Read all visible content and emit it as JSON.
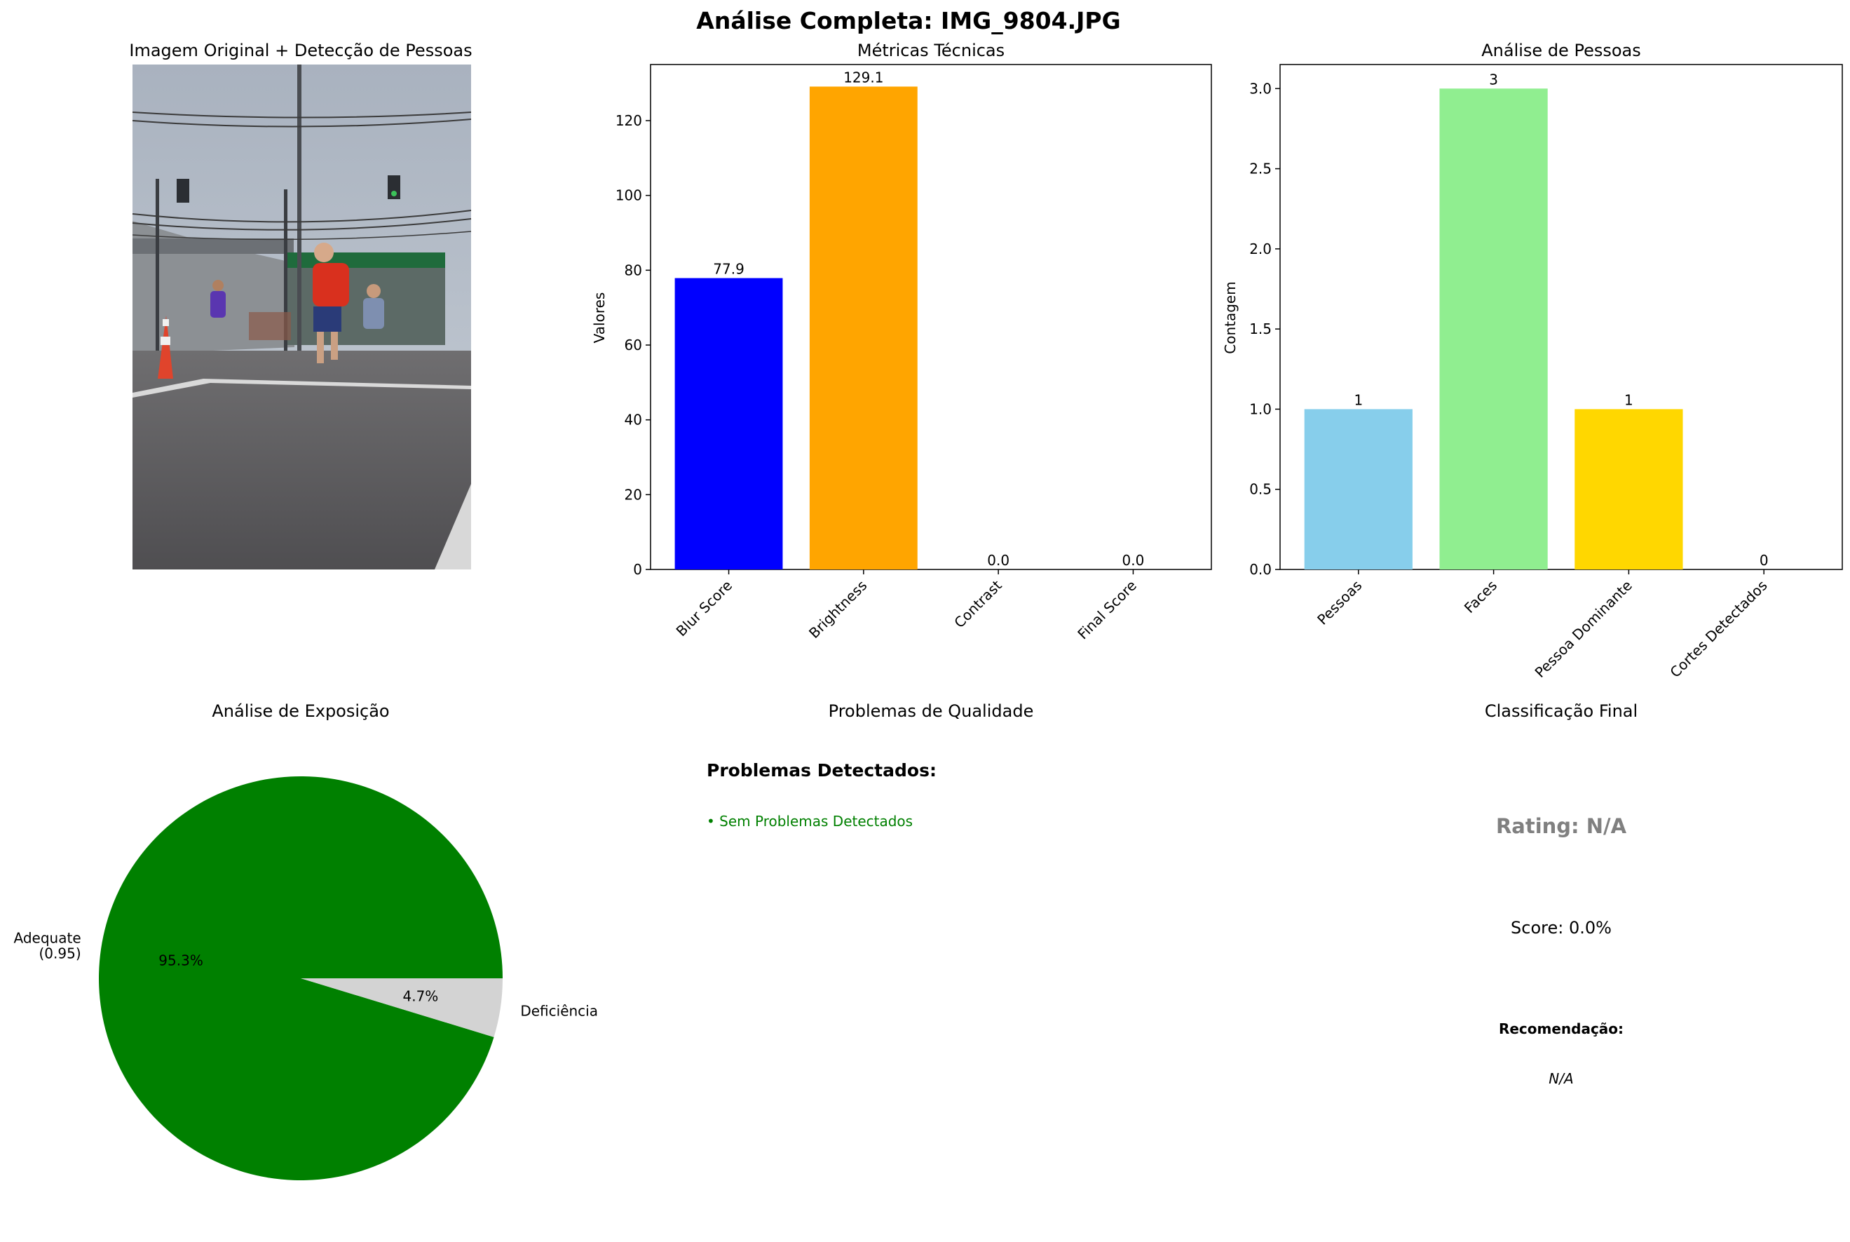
{
  "figure_title": "Análise Completa: IMG_9804.JPG",
  "panels": {
    "image": {
      "title": "Imagem Original + Detecção de Pessoas"
    },
    "quality": {
      "title": "Problemas de Qualidade",
      "heading": "Problemas Detectados:",
      "items": [
        "• Sem Problemas Detectados"
      ],
      "item_color": "#008000"
    },
    "classification": {
      "title": "Classificação Final",
      "rating": "Rating: N/A",
      "rating_color": "#808080",
      "score": "Score: 0.0%",
      "recommendation_label": "Recomendação:",
      "recommendation": "N/A"
    }
  },
  "chart_data": [
    {
      "type": "bar",
      "title": "Métricas Técnicas",
      "xlabel": "",
      "ylabel": "Valores",
      "categories": [
        "Blur Score",
        "Brightness",
        "Contrast",
        "Final Score"
      ],
      "values": [
        77.9,
        129.1,
        0.0,
        0.0
      ],
      "value_labels": [
        "77.9",
        "129.1",
        "0.0",
        "0.0"
      ],
      "colors": [
        "#0000ff",
        "#ffa500",
        "#ff0000",
        "#008000"
      ],
      "ylim": [
        0,
        135
      ],
      "yticks": [
        0,
        20,
        40,
        60,
        80,
        100,
        120
      ],
      "ytick_labels": [
        "0",
        "20",
        "40",
        "60",
        "80",
        "100",
        "120"
      ],
      "xtick_rotation": 45,
      "grid": false
    },
    {
      "type": "bar",
      "title": "Análise de Pessoas",
      "xlabel": "",
      "ylabel": "Contagem",
      "categories": [
        "Pessoas",
        "Faces",
        "Pessoa Dominante",
        "Cortes Detectados"
      ],
      "values": [
        1,
        3,
        1,
        0
      ],
      "value_labels": [
        "1",
        "3",
        "1",
        "0"
      ],
      "colors": [
        "#87ceeb",
        "#90ee90",
        "#ffd700",
        "#f08080"
      ],
      "ylim": [
        0,
        3.15
      ],
      "yticks": [
        0,
        0.5,
        1,
        1.5,
        2,
        2.5,
        3
      ],
      "ytick_labels": [
        "0.0",
        "0.5",
        "1.0",
        "1.5",
        "2.0",
        "2.5",
        "3.0"
      ],
      "xtick_rotation": 45,
      "grid": false
    },
    {
      "type": "pie",
      "title": "Análise de Exposição",
      "labels": [
        "Adequate\n(0.95)",
        "Deficiência"
      ],
      "values": [
        95.3,
        4.7
      ],
      "pct_labels": [
        "95.3%",
        "4.7%"
      ],
      "colors": [
        "#008000",
        "#d3d3d3"
      ]
    }
  ]
}
